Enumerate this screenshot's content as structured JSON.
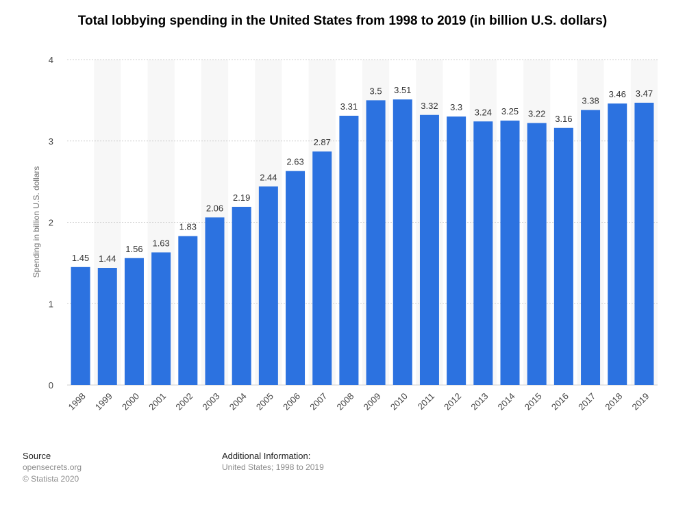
{
  "chart_data": {
    "type": "bar",
    "title": "Total lobbying spending in the United States from 1998 to 2019 (in billion U.S. dollars)",
    "ylabel": "Spending in billion U.S. dollars",
    "xlabel": "",
    "categories": [
      "1998",
      "1999",
      "2000",
      "2001",
      "2002",
      "2003",
      "2004",
      "2005",
      "2006",
      "2007",
      "2008",
      "2009",
      "2010",
      "2011",
      "2012",
      "2013",
      "2014",
      "2015",
      "2016",
      "2017",
      "2018",
      "2019"
    ],
    "values": [
      1.45,
      1.44,
      1.56,
      1.63,
      1.83,
      2.06,
      2.19,
      2.44,
      2.63,
      2.87,
      3.31,
      3.5,
      3.51,
      3.32,
      3.3,
      3.24,
      3.25,
      3.22,
      3.16,
      3.38,
      3.46,
      3.47
    ],
    "value_labels": [
      "1.45",
      "1.44",
      "1.56",
      "1.63",
      "1.83",
      "2.06",
      "2.19",
      "2.44",
      "2.63",
      "2.87",
      "3.31",
      "3.5",
      "3.51",
      "3.32",
      "3.3",
      "3.24",
      "3.25",
      "3.22",
      "3.16",
      "3.38",
      "3.46",
      "3.47"
    ],
    "ylim": [
      0,
      4
    ],
    "yticks": [
      0,
      1,
      2,
      3,
      4
    ],
    "grid": true,
    "bar_color": "#2c72e0",
    "band_color": "#f7f7f7"
  },
  "footer": {
    "source_heading": "Source",
    "source_lines": [
      "opensecrets.org",
      "© Statista 2020"
    ],
    "info_heading": "Additional Information:",
    "info_lines": [
      "United States; 1998 to 2019"
    ]
  }
}
